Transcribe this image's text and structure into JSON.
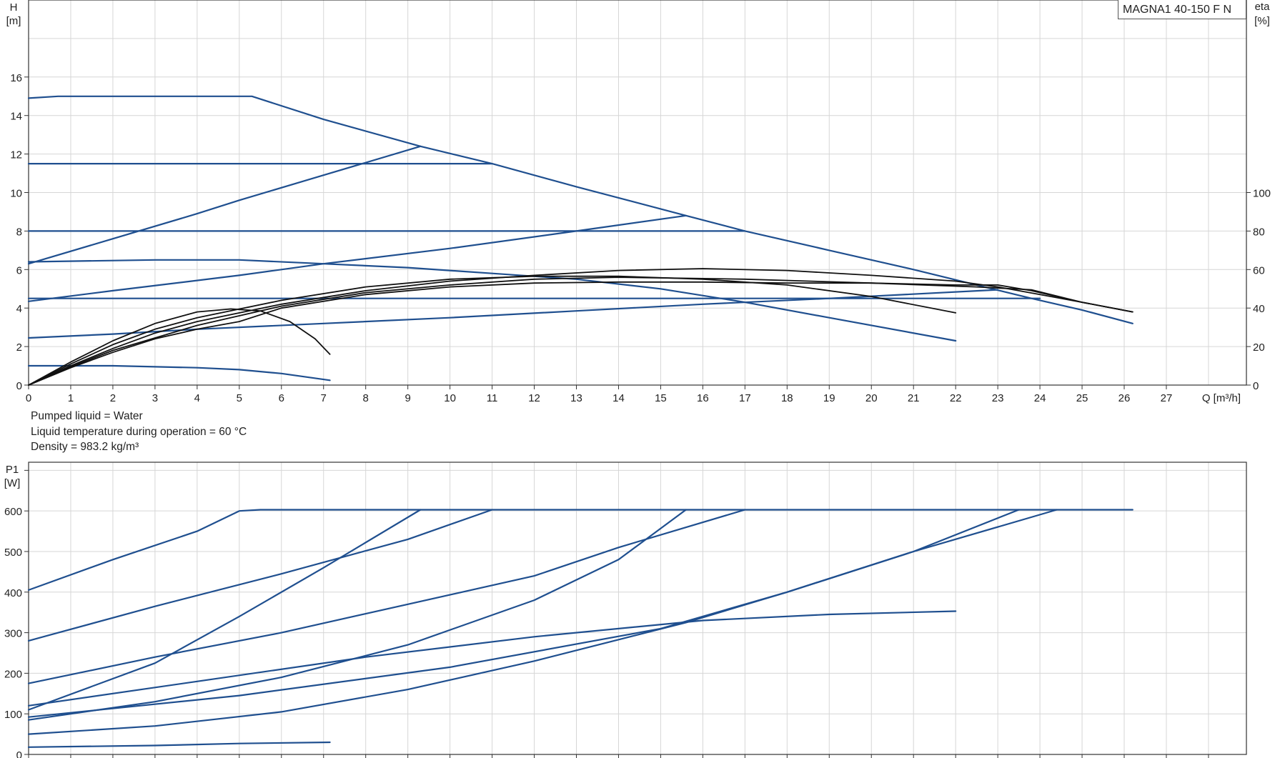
{
  "notes": [
    "Pumped liquid = Water",
    "Liquid temperature during operation = 60 °C",
    "Density = 983.2 kg/m³"
  ],
  "colors": {
    "blue": "#1f4f8f",
    "black": "#111111",
    "grid": "#d6d6d6"
  },
  "chart_data": [
    {
      "type": "line",
      "legend": "MAGNA1 40-150 F N",
      "legend_placement": "top-right",
      "xlabel": "Q [m³/h]",
      "ylabel_left": [
        "H",
        "[m]"
      ],
      "ylabel_right": [
        "eta",
        "[%]"
      ],
      "xlim": [
        0,
        28.9
      ],
      "ylim_left": [
        0,
        20
      ],
      "ylim_right": [
        0,
        200
      ],
      "grid": true,
      "x_ticks": [
        "0",
        "1",
        "2",
        "3",
        "4",
        "5",
        "6",
        "7",
        "8",
        "9",
        "10",
        "11",
        "12",
        "13",
        "14",
        "15",
        "16",
        "17",
        "18",
        "19",
        "20",
        "21",
        "22",
        "23",
        "24",
        "25",
        "26",
        "27"
      ],
      "y_ticks_left": [
        "0",
        "2",
        "4",
        "6",
        "8",
        "10",
        "12",
        "14",
        "16"
      ],
      "y_ticks_right": [
        "0",
        "20",
        "40",
        "60",
        "80",
        "100"
      ],
      "head_series": [
        {
          "points": [
            [
              0,
              14.9
            ],
            [
              0.7,
              15
            ],
            [
              5.3,
              15
            ],
            [
              7,
              13.8
            ],
            [
              9.3,
              12.4
            ],
            [
              11,
              11.5
            ],
            [
              13,
              10.3
            ],
            [
              15.6,
              8.8
            ],
            [
              17,
              8
            ],
            [
              19,
              7
            ],
            [
              21,
              6
            ],
            [
              22.5,
              5.2
            ],
            [
              23.8,
              4.5
            ],
            [
              25,
              3.9
            ],
            [
              26.2,
              3.2
            ]
          ]
        },
        {
          "points": [
            [
              0,
              11.5
            ],
            [
              11,
              11.5
            ]
          ]
        },
        {
          "points": [
            [
              0,
              6.3
            ],
            [
              2,
              7.6
            ],
            [
              4,
              8.9
            ],
            [
              5,
              9.6
            ],
            [
              7,
              10.9
            ],
            [
              9.3,
              12.4
            ]
          ]
        },
        {
          "points": [
            [
              0,
              8
            ],
            [
              17,
              8
            ]
          ]
        },
        {
          "points": [
            [
              0,
              4.35
            ],
            [
              2,
              4.9
            ],
            [
              5,
              5.7
            ],
            [
              7,
              6.3
            ],
            [
              10,
              7.1
            ],
            [
              13,
              8
            ],
            [
              15.6,
              8.8
            ]
          ]
        },
        {
          "points": [
            [
              0,
              6.4
            ],
            [
              3,
              6.5
            ],
            [
              5,
              6.5
            ],
            [
              7,
              6.3
            ],
            [
              9,
              6.1
            ],
            [
              11,
              5.8
            ],
            [
              13,
              5.5
            ],
            [
              15,
              5
            ],
            [
              17,
              4.3
            ],
            [
              19,
              3.5
            ],
            [
              22,
              2.3
            ]
          ]
        },
        {
          "points": [
            [
              0,
              4.5
            ],
            [
              24,
              4.5
            ]
          ]
        },
        {
          "points": [
            [
              0,
              2.45
            ],
            [
              2,
              2.65
            ],
            [
              4,
              2.9
            ],
            [
              7,
              3.2
            ],
            [
              10,
              3.5
            ],
            [
              13,
              3.85
            ],
            [
              16,
              4.2
            ],
            [
              19,
              4.5
            ],
            [
              23,
              4.95
            ]
          ]
        },
        {
          "points": [
            [
              0,
              1
            ],
            [
              2,
              1
            ],
            [
              4,
              0.9
            ],
            [
              5,
              0.8
            ],
            [
              6,
              0.6
            ],
            [
              7.15,
              0.25
            ]
          ]
        }
      ],
      "eta_series": [
        {
          "points": [
            [
              0,
              0
            ],
            [
              1,
              12
            ],
            [
              2,
              23
            ],
            [
              3,
              32
            ],
            [
              4,
              38
            ],
            [
              4.8,
              39.5
            ],
            [
              5.5,
              38.5
            ],
            [
              6.2,
              33
            ],
            [
              6.8,
              24
            ],
            [
              7.15,
              16
            ]
          ]
        },
        {
          "points": [
            [
              0,
              0
            ],
            [
              1,
              11
            ],
            [
              2,
              21
            ],
            [
              3,
              29
            ],
            [
              4,
              35
            ],
            [
              6,
              44
            ],
            [
              8,
              51
            ],
            [
              10,
              55
            ],
            [
              12,
              56.5
            ],
            [
              14,
              56.5
            ],
            [
              16,
              55
            ],
            [
              18,
              52
            ],
            [
              20,
              46
            ],
            [
              22,
              37.5
            ]
          ]
        },
        {
          "points": [
            [
              0,
              0
            ],
            [
              1,
              10
            ],
            [
              2,
              19
            ],
            [
              3,
              27
            ],
            [
              4,
              33
            ],
            [
              6,
              42
            ],
            [
              8,
              49
            ],
            [
              10,
              54
            ],
            [
              12,
              57
            ],
            [
              14,
              59.5
            ],
            [
              16,
              60.5
            ],
            [
              18,
              59.5
            ],
            [
              20,
              57
            ],
            [
              22,
              54
            ],
            [
              23,
              51
            ],
            [
              24,
              47
            ],
            [
              25,
              43
            ],
            [
              26.2,
              38
            ]
          ]
        },
        {
          "points": [
            [
              0,
              0
            ],
            [
              1,
              9
            ],
            [
              2,
              17
            ],
            [
              3,
              24
            ],
            [
              4,
              29
            ],
            [
              5,
              33
            ],
            [
              6,
              40
            ],
            [
              8,
              47
            ],
            [
              10,
              51
            ],
            [
              12,
              53
            ],
            [
              14,
              53.5
            ],
            [
              16,
              53.5
            ],
            [
              18,
              53
            ],
            [
              20,
              53
            ],
            [
              22,
              52
            ],
            [
              23,
              52
            ],
            [
              23.8,
              49
            ],
            [
              25,
              43
            ],
            [
              26.2,
              38
            ]
          ]
        },
        {
          "points": [
            [
              0,
              0
            ],
            [
              1,
              9.5
            ],
            [
              2,
              18
            ],
            [
              4,
              31
            ],
            [
              6,
              41
            ],
            [
              8,
              48
            ],
            [
              10,
              52
            ],
            [
              12,
              55
            ],
            [
              14,
              56
            ],
            [
              17,
              55
            ],
            [
              20,
              53
            ],
            [
              22.5,
              51
            ],
            [
              23.8,
              49.5
            ],
            [
              25,
              43
            ],
            [
              26.2,
              38
            ]
          ]
        }
      ]
    },
    {
      "type": "line",
      "ylabel_left": [
        "P1",
        "[W]"
      ],
      "xlim": [
        0,
        28.9
      ],
      "ylim": [
        0,
        720
      ],
      "grid": true,
      "y_ticks": [
        "0",
        "100",
        "200",
        "300",
        "400",
        "500",
        "600"
      ],
      "series": [
        {
          "points": [
            [
              0,
              405
            ],
            [
              2,
              480
            ],
            [
              4,
              550
            ],
            [
              5,
              600
            ],
            [
              5.5,
              603
            ],
            [
              26.2,
              603
            ]
          ]
        },
        {
          "points": [
            [
              0,
              280
            ],
            [
              3,
              365
            ],
            [
              6,
              445
            ],
            [
              9,
              530
            ],
            [
              11,
              603
            ]
          ]
        },
        {
          "points": [
            [
              0,
              110
            ],
            [
              3,
              225
            ],
            [
              5,
              340
            ],
            [
              7,
              460
            ],
            [
              9.3,
              603
            ]
          ]
        },
        {
          "points": [
            [
              0,
              175
            ],
            [
              3,
              240
            ],
            [
              6,
              300
            ],
            [
              9,
              370
            ],
            [
              12,
              440
            ],
            [
              14,
              510
            ],
            [
              17,
              603
            ]
          ]
        },
        {
          "points": [
            [
              0,
              85
            ],
            [
              3,
              130
            ],
            [
              6,
              190
            ],
            [
              9,
              270
            ],
            [
              12,
              380
            ],
            [
              14,
              480
            ],
            [
              15.6,
              603
            ]
          ]
        },
        {
          "points": [
            [
              0,
              120
            ],
            [
              4,
              180
            ],
            [
              8,
              240
            ],
            [
              12,
              290
            ],
            [
              16,
              330
            ],
            [
              19,
              345
            ],
            [
              22,
              353
            ]
          ]
        },
        {
          "points": [
            [
              0,
              92
            ],
            [
              5,
              145
            ],
            [
              10,
              215
            ],
            [
              15,
              310
            ],
            [
              18,
              400
            ],
            [
              21,
              500
            ],
            [
              23.5,
              603
            ]
          ]
        },
        {
          "points": [
            [
              0,
              50
            ],
            [
              3,
              70
            ],
            [
              6,
              105
            ],
            [
              9,
              160
            ],
            [
              12,
              230
            ],
            [
              15.6,
              325
            ],
            [
              18,
              400
            ],
            [
              21,
              500
            ],
            [
              24.4,
              603
            ]
          ]
        },
        {
          "points": [
            [
              0,
              18
            ],
            [
              3,
              22
            ],
            [
              5,
              27
            ],
            [
              7.15,
              30
            ]
          ]
        }
      ]
    }
  ]
}
